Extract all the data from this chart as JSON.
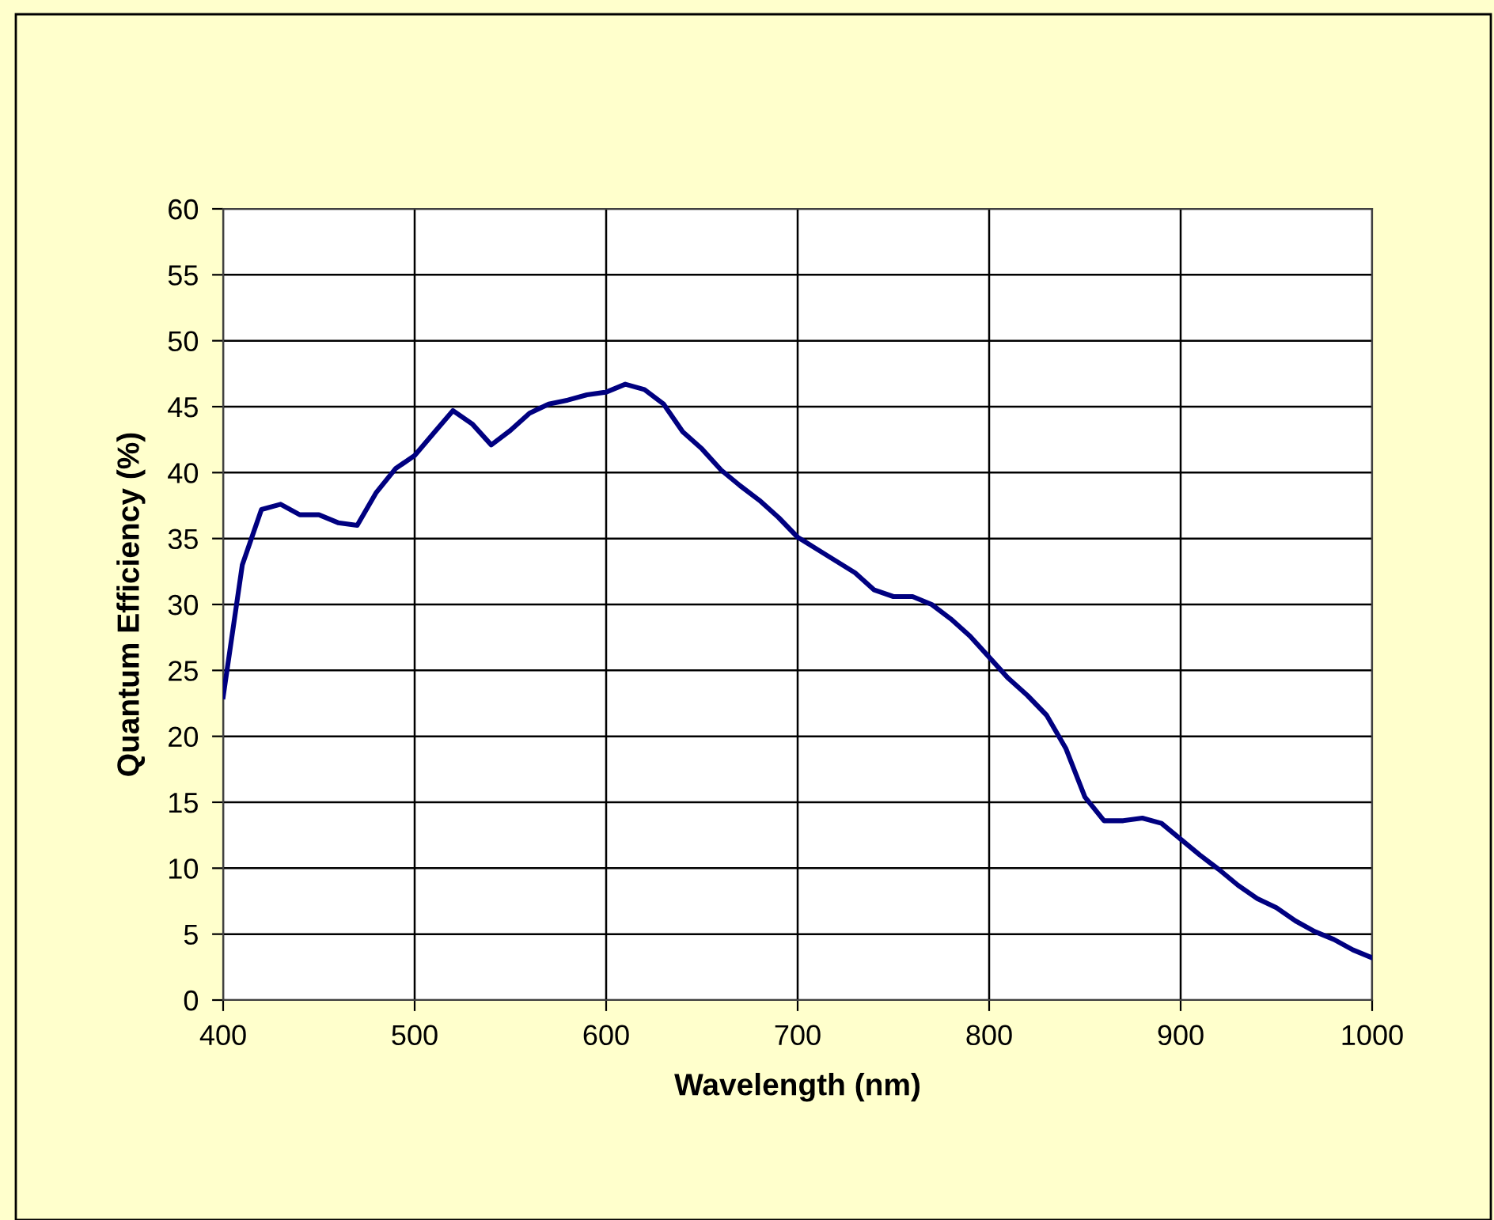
{
  "chart_data": {
    "type": "line",
    "xlabel": "Wavelength (nm)",
    "ylabel": "Quantum Efficiency (%)",
    "x": [
      400,
      410,
      420,
      430,
      440,
      450,
      460,
      470,
      480,
      490,
      500,
      510,
      520,
      530,
      540,
      550,
      560,
      570,
      580,
      590,
      600,
      610,
      620,
      630,
      640,
      650,
      660,
      670,
      680,
      690,
      700,
      710,
      720,
      730,
      740,
      750,
      760,
      770,
      780,
      790,
      800,
      810,
      820,
      830,
      840,
      850,
      860,
      870,
      880,
      890,
      900,
      910,
      920,
      930,
      940,
      950,
      960,
      970,
      980,
      990,
      1000
    ],
    "series": [
      {
        "color": "#000080",
        "values": [
          23,
          33,
          37.2,
          37.6,
          36.8,
          36.8,
          36.2,
          36.0,
          38.5,
          40.3,
          41.3,
          43.0,
          44.7,
          43.7,
          42.1,
          43.2,
          44.5,
          45.2,
          45.5,
          45.9,
          46.1,
          46.7,
          46.3,
          45.2,
          43.1,
          41.8,
          40.2,
          39.0,
          37.9,
          36.6,
          35.1,
          34.2,
          33.3,
          32.4,
          31.1,
          30.6,
          30.6,
          30.0,
          28.9,
          27.6,
          26.0,
          24.4,
          23.1,
          21.6,
          19.1,
          15.4,
          13.6,
          13.6,
          13.8,
          13.4,
          12.2,
          11.0,
          9.9,
          8.7,
          7.7,
          7.0,
          6.0,
          5.2,
          4.6,
          3.8,
          3.2
        ]
      }
    ],
    "xlim": [
      400,
      1000
    ],
    "xticks": [
      400,
      500,
      600,
      700,
      800,
      900,
      1000
    ],
    "ylim": [
      0,
      60
    ],
    "yticks": [
      0,
      5,
      10,
      15,
      20,
      25,
      30,
      35,
      40,
      45,
      50,
      55,
      60
    ],
    "grid": true,
    "marker": "none",
    "line_style": "solid"
  }
}
